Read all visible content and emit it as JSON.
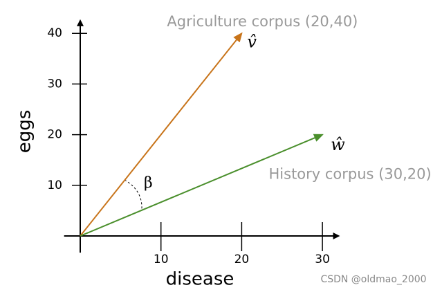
{
  "chart_data": {
    "type": "vector",
    "x_label": "disease",
    "y_label": "eggs",
    "xlim": [
      -2,
      32
    ],
    "ylim": [
      -3.3,
      42.5
    ],
    "xticks": [
      10,
      20,
      30
    ],
    "yticks": [
      10,
      20,
      30,
      40
    ],
    "series": [
      {
        "name": "Agriculture corpus (20,40)",
        "symbol": "v̂",
        "color": "#c8741a",
        "x": 20,
        "y": 40
      },
      {
        "name": "History corpus (30,20)",
        "symbol": "ŵ",
        "color": "#4a8f2c",
        "x": 30,
        "y": 20
      }
    ],
    "angle_label": "β",
    "watermark": "CSDN @oldmao_2000"
  }
}
